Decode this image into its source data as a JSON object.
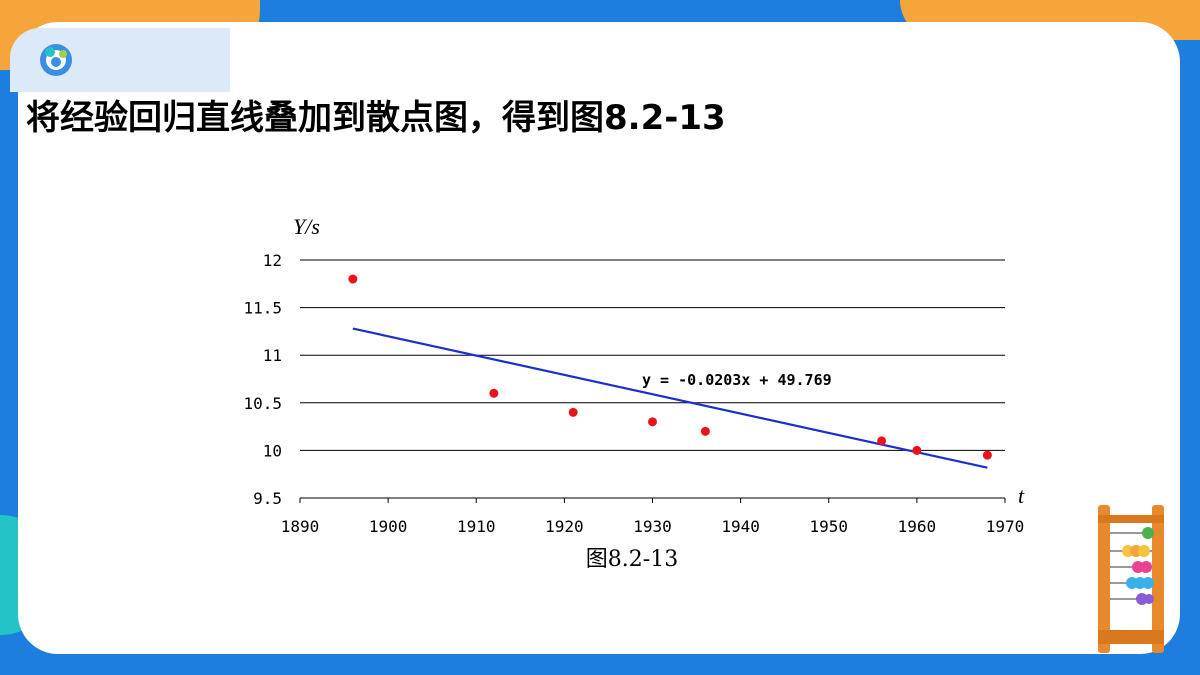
{
  "header": {
    "title": "将经验回归直线叠加到散点图，得到图8.2-13"
  },
  "colors": {
    "point": "#e8141b",
    "regression_line": "#1b2fcf",
    "gridline": "#000000",
    "background": "#1e7ee0",
    "accent": "#f6a53a"
  },
  "chart_data": {
    "type": "scatter",
    "ylabel": "Y/s",
    "xlabel": "t",
    "caption": "图8.2-13",
    "xlim": [
      1890,
      1970
    ],
    "ylim": [
      9.5,
      12
    ],
    "x_ticks": [
      1890,
      1900,
      1910,
      1920,
      1930,
      1940,
      1950,
      1960,
      1970
    ],
    "x_tick_labels": [
      "1890",
      "1900",
      "1910",
      "1920",
      "1930",
      "1940",
      "1950",
      "1960",
      "1970"
    ],
    "y_ticks": [
      9.5,
      10,
      10.5,
      11,
      11.5,
      12
    ],
    "y_tick_labels": [
      "9.5",
      "10",
      "10.5",
      "11",
      "11.5",
      "12"
    ],
    "grid": "horizontal",
    "points": [
      {
        "x": 1896,
        "y": 11.8
      },
      {
        "x": 1912,
        "y": 10.6
      },
      {
        "x": 1921,
        "y": 10.4
      },
      {
        "x": 1930,
        "y": 10.3
      },
      {
        "x": 1936,
        "y": 10.2
      },
      {
        "x": 1956,
        "y": 10.1
      },
      {
        "x": 1960,
        "y": 10.0
      },
      {
        "x": 1968,
        "y": 9.95
      }
    ],
    "regression": {
      "slope": -0.0203,
      "intercept": 49.769,
      "x_range": [
        1896,
        1968
      ],
      "equation_label": "y = -0.0203x + 49.769"
    }
  }
}
